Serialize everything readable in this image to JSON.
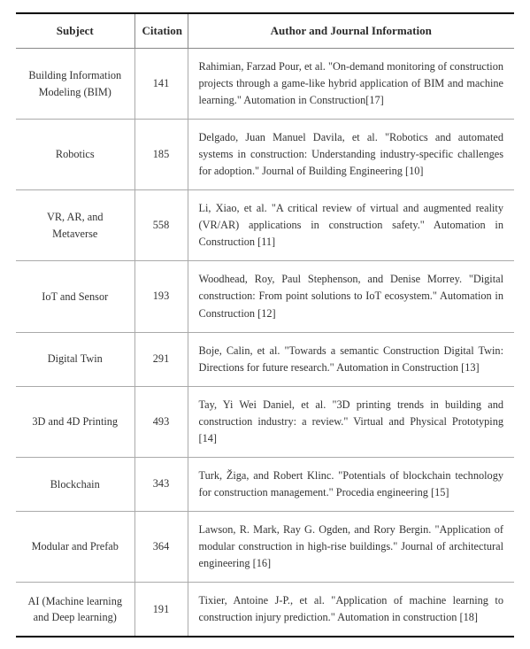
{
  "table": {
    "columns": {
      "subject": "Subject",
      "citation": "Citation",
      "info": "Author and Journal Information"
    },
    "rows": [
      {
        "subject": "Building Information Modeling (BIM)",
        "citation": "141",
        "info": "Rahimian, Farzad Pour, et al. \"On-demand monitoring of construction projects through a game-like hybrid application of BIM and machine learning.\" Automation in Construction[17]"
      },
      {
        "subject": "Robotics",
        "citation": "185",
        "info": "Delgado, Juan Manuel Davila, et al. \"Robotics and automated systems in construction: Understanding industry-specific challenges for adoption.\" Journal of Building Engineering [10]"
      },
      {
        "subject": "VR, AR, and Metaverse",
        "citation": "558",
        "info": "Li, Xiao, et al. \"A critical review of virtual and augmented reality (VR/AR) applications in construction safety.\" Automation in Construction [11]"
      },
      {
        "subject": "IoT and Sensor",
        "citation": "193",
        "info": "Woodhead, Roy, Paul Stephenson, and Denise Morrey. \"Digital construction: From point solutions to IoT ecosystem.\" Automation in Construction [12]"
      },
      {
        "subject": "Digital Twin",
        "citation": "291",
        "info": "Boje, Calin, et al. \"Towards a semantic Construction Digital Twin: Directions for future research.\" Automation in Construction [13]"
      },
      {
        "subject": "3D and 4D Printing",
        "citation": "493",
        "info": "Tay, Yi Wei Daniel, et al. \"3D printing trends in building and construction industry: a review.\" Virtual and Physical Prototyping [14]"
      },
      {
        "subject": "Blockchain",
        "citation": "343",
        "info": "Turk, Žiga, and Robert Klinc. \"Potentials of blockchain technology for construction management.\" Procedia engineering [15]"
      },
      {
        "subject": "Modular and Prefab",
        "citation": "364",
        "info": "Lawson, R. Mark, Ray G. Ogden, and Rory Bergin. \"Application of modular construction in high-rise buildings.\" Journal of architectural engineering [16]"
      },
      {
        "subject": "AI (Machine learning and Deep learning)",
        "citation": "191",
        "info": "Tixier, Antoine J-P., et al. \"Application of machine learning to construction injury prediction.\" Automation in construction [18]"
      }
    ],
    "styling": {
      "border_top_color": "#000000",
      "border_top_width": 2,
      "border_bottom_color": "#000000",
      "border_bottom_width": 2,
      "row_border_color": "#aaaaaa",
      "header_border_color": "#888888",
      "font_family": "Times New Roman",
      "header_fontsize": 13,
      "body_fontsize": 12.3,
      "text_color": "#333333",
      "header_text_color": "#2a2a2a",
      "background_color": "#ffffff",
      "col_widths": {
        "subject": 134,
        "citation": 60
      },
      "info_justify": true
    }
  }
}
